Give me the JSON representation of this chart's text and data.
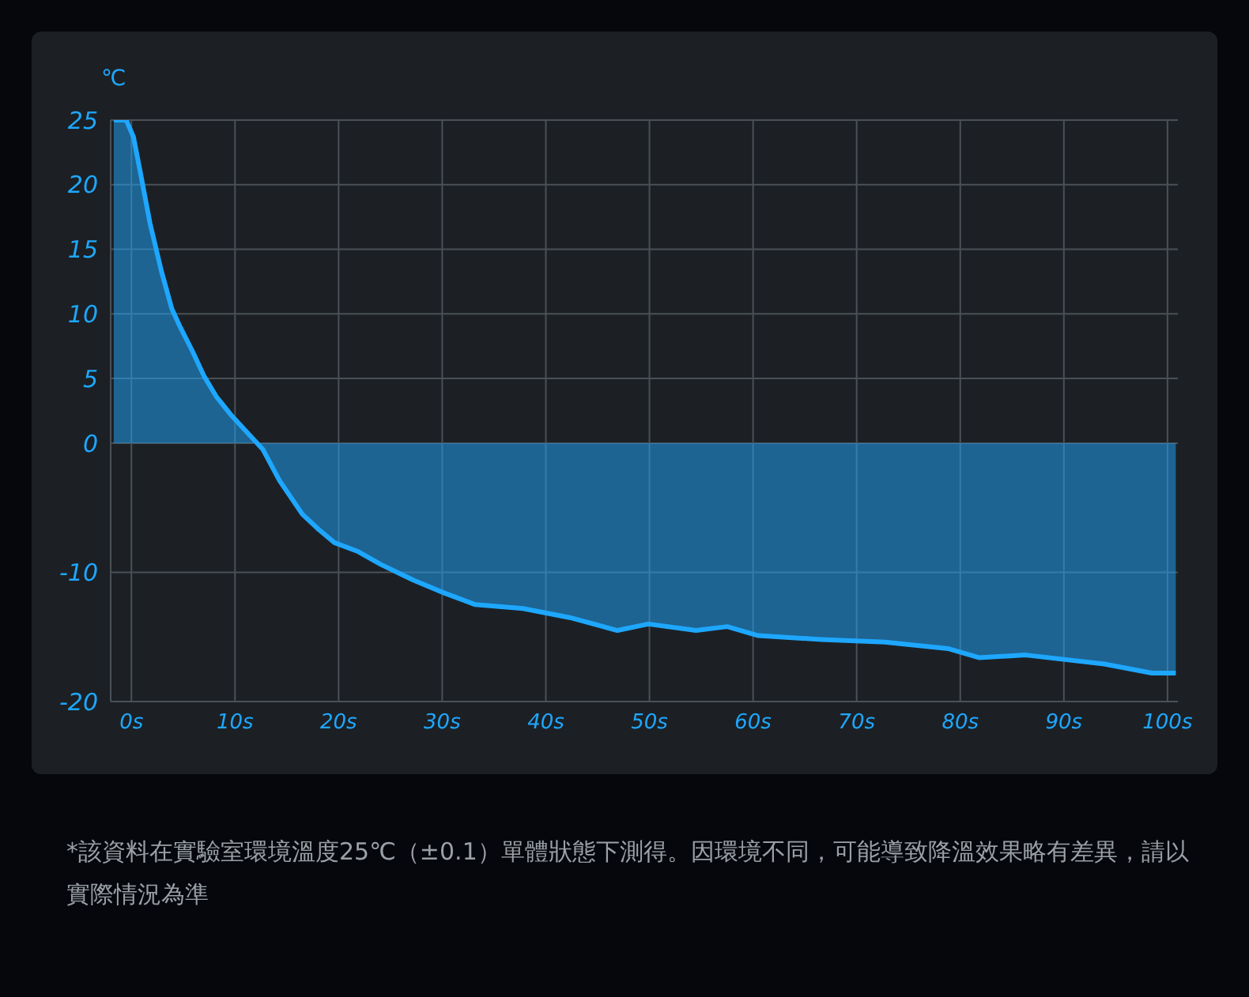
{
  "chart_data": {
    "type": "area",
    "ylabel": "℃",
    "x": [
      -1.7,
      -0.5,
      0.2,
      0.9,
      1.8,
      2.9,
      3.9,
      4.7,
      5.9,
      7.0,
      8.2,
      9.7,
      11.2,
      12.7,
      14.3,
      16.5,
      18.1,
      19.6,
      21.9,
      24.1,
      27.2,
      30.2,
      33.2,
      37.8,
      42.3,
      46.9,
      49.9,
      54.5,
      57.5,
      60.5,
      66.6,
      72.7,
      78.8,
      81.8,
      86.3,
      93.9,
      98.5,
      100.8
    ],
    "series": [
      {
        "color": "#1ea7ff",
        "values": [
          25,
          25,
          23.7,
          20.8,
          17,
          13.3,
          10.4,
          9,
          7.1,
          5.2,
          3.6,
          2.1,
          0.8,
          -0.5,
          -2.9,
          -5.5,
          -6.7,
          -7.7,
          -8.4,
          -9.4,
          -10.6,
          -11.6,
          -12.5,
          -12.8,
          -13.5,
          -14.5,
          -14,
          -14.5,
          -14.2,
          -14.9,
          -15.2,
          -15.4,
          -15.9,
          -16.6,
          -16.4,
          -17.1,
          -17.8,
          -17.8
        ]
      }
    ],
    "xlim": [
      -2,
      101
    ],
    "xticks": [
      {
        "value": 0,
        "label": "0s"
      },
      {
        "value": 10,
        "label": "10s"
      },
      {
        "value": 20,
        "label": "20s"
      },
      {
        "value": 30,
        "label": "30s"
      },
      {
        "value": 40,
        "label": "40s"
      },
      {
        "value": 50,
        "label": "50s"
      },
      {
        "value": 60,
        "label": "60s"
      },
      {
        "value": 70,
        "label": "70s"
      },
      {
        "value": 80,
        "label": "80s"
      },
      {
        "value": 90,
        "label": "90s"
      },
      {
        "value": 100,
        "label": "100s"
      }
    ],
    "ylim": [
      -20,
      25
    ],
    "yticks": [
      -20,
      -10,
      0,
      5,
      10,
      15,
      20,
      25
    ],
    "grid": true,
    "legend": false,
    "annotations": [
      "*該資料在實驗室環境溫度25℃（±0.1）單體狀態下測得。因環境不同，可能導致降溫效果略有差異，請以實際情況為準"
    ]
  }
}
